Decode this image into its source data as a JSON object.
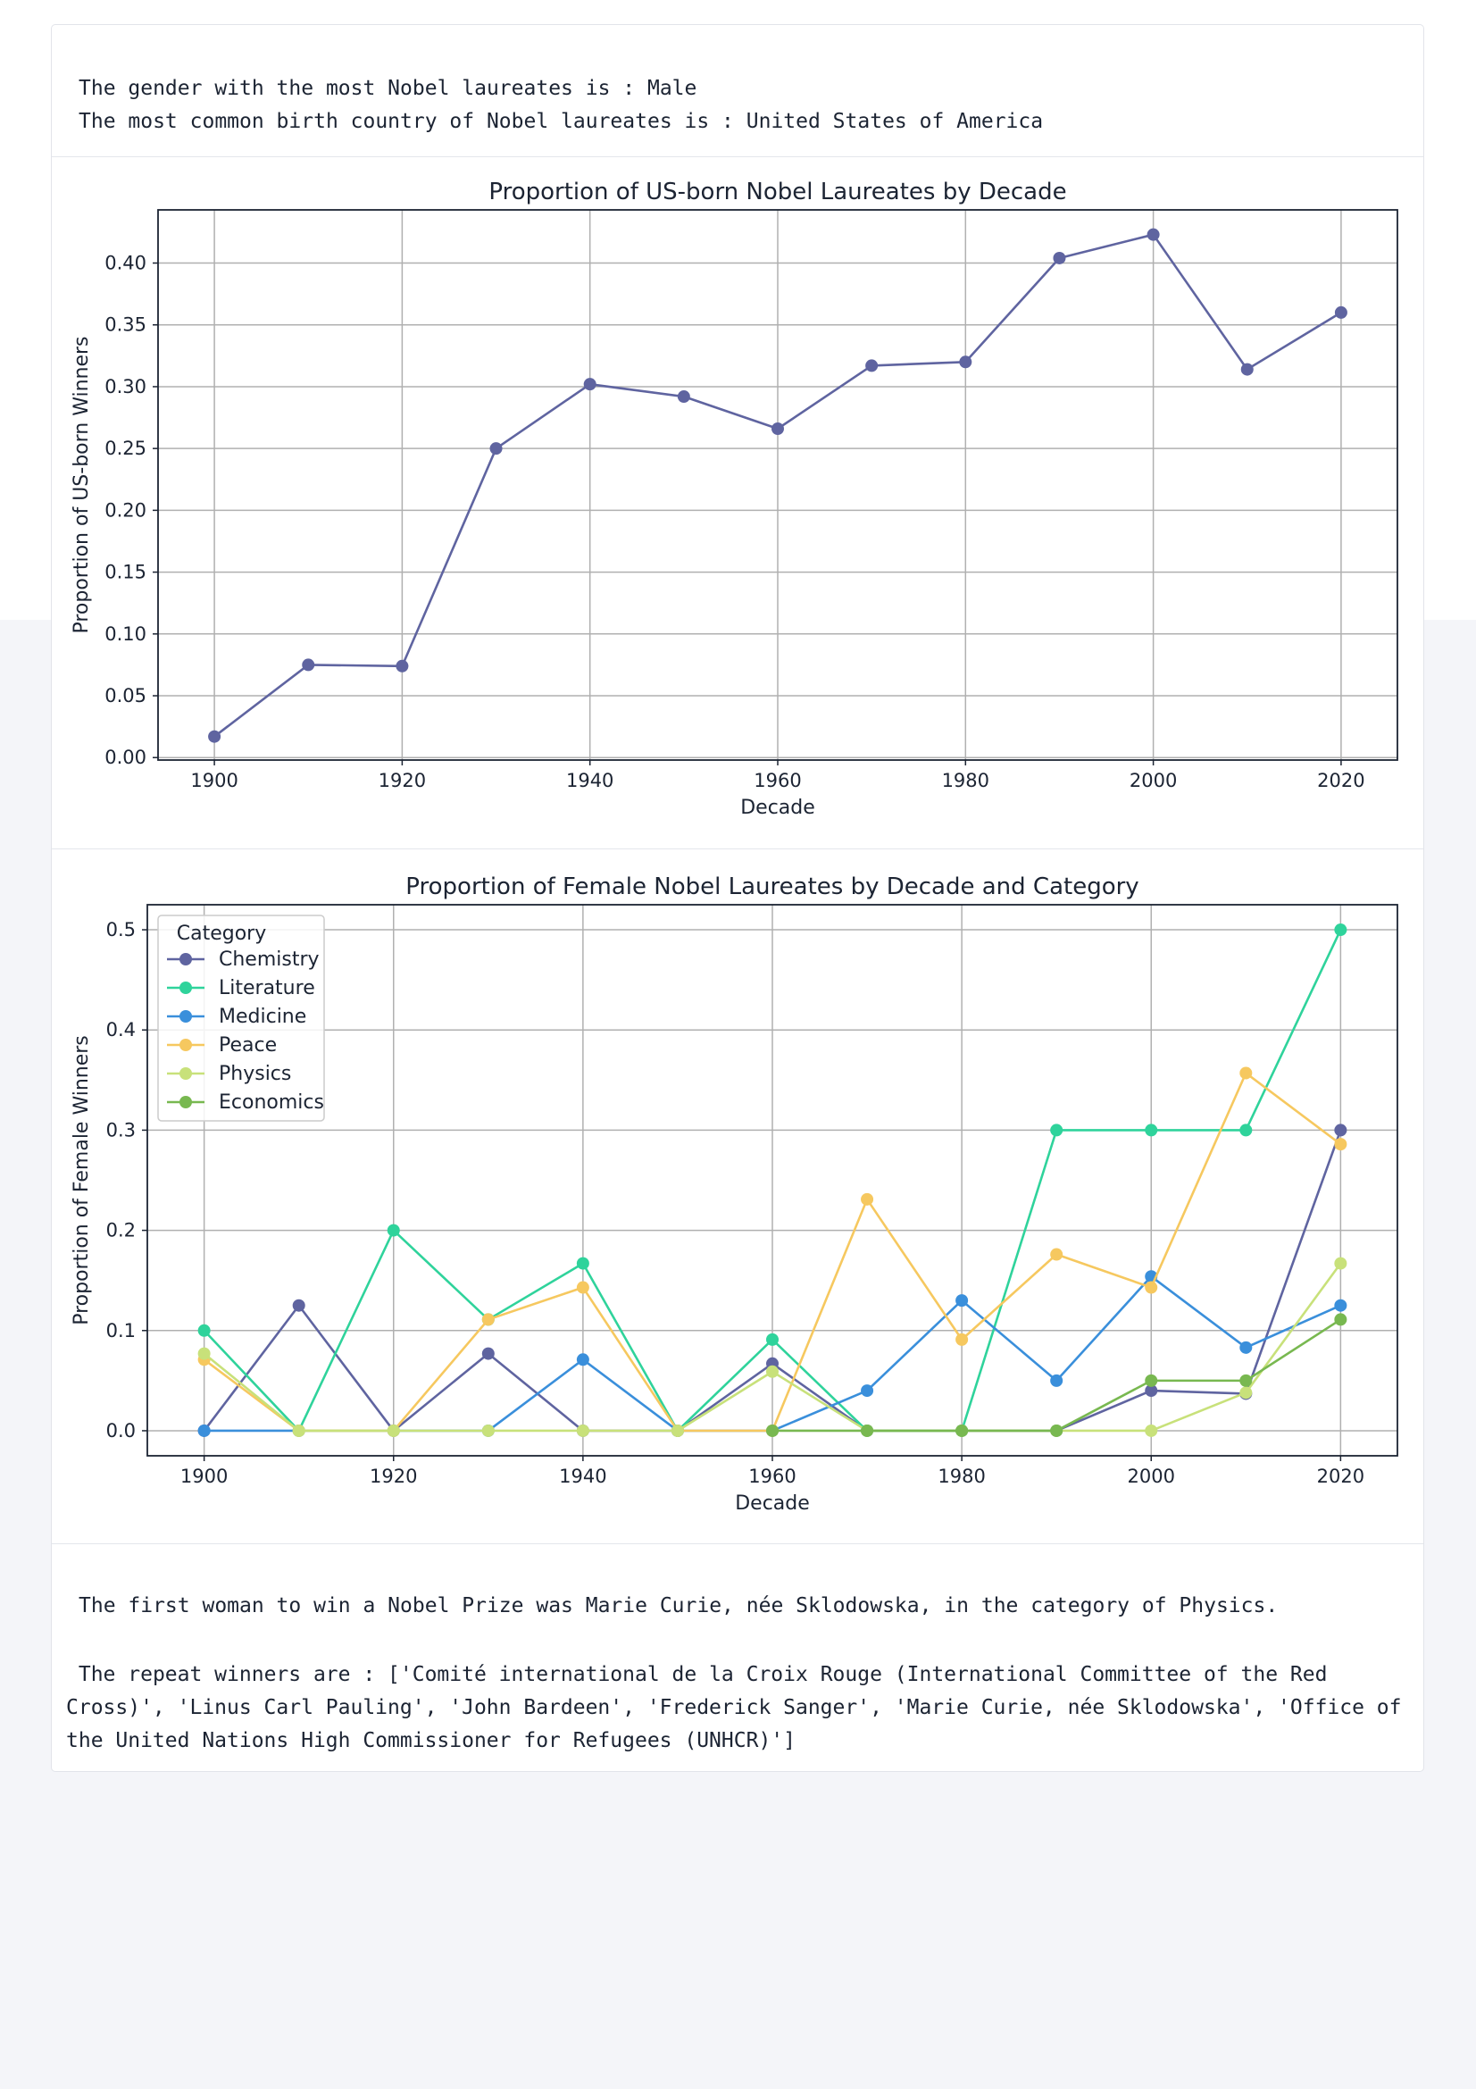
{
  "output_top": {
    "line1": "The gender with the most Nobel laureates is : Male",
    "line2": "The most common birth country of Nobel laureates is : United States of America"
  },
  "output_bottom": {
    "first_woman": "The first woman to win a Nobel Prize was Marie Curie, née Sklodowska, in the category of Physics.",
    "repeat_winners": " The repeat winners are : ['Comité international de la Croix Rouge (International Committee of the Red Cross)', 'Linus Carl Pauling', 'John Bardeen', 'Frederick Sanger', 'Marie Curie, née Sklodowska', 'Office of the United Nations High Commissioner for Refugees (UNHCR)']"
  },
  "colors": {
    "chemistry": "#5f64a0",
    "literature": "#2fd39b",
    "medicine": "#3a8fdb",
    "peace": "#f6c85f",
    "physics": "#c8e17a",
    "economics": "#78b850",
    "grid": "#b0b0b0",
    "axes": "#1c2433"
  },
  "chart_data": [
    {
      "type": "line",
      "title": "Proportion of US-born Nobel Laureates by Decade",
      "xlabel": "Decade",
      "ylabel": "Proportion of US-born Winners",
      "x": [
        1900,
        1910,
        1920,
        1930,
        1940,
        1950,
        1960,
        1970,
        1980,
        1990,
        2000,
        2010,
        2020
      ],
      "series": [
        {
          "values": [
            0.017,
            0.075,
            0.074,
            0.25,
            0.302,
            0.292,
            0.266,
            0.317,
            0.32,
            0.404,
            0.423,
            0.314,
            0.36
          ],
          "color": "#5f64a0"
        }
      ],
      "xticks": [
        "1900",
        "1920",
        "1940",
        "1960",
        "1980",
        "2000",
        "2020"
      ],
      "yticks": [
        "0.00",
        "0.05",
        "0.10",
        "0.15",
        "0.20",
        "0.25",
        "0.30",
        "0.35",
        "0.40"
      ],
      "xlim": [
        1894,
        2026
      ],
      "ylim": [
        -0.002,
        0.443
      ],
      "grid": true
    },
    {
      "type": "line",
      "title": "Proportion of Female Nobel Laureates by Decade and Category",
      "xlabel": "Decade",
      "ylabel": "Proportion of Female Winners",
      "legend_title": "Category",
      "legend_position": "top-left",
      "x": [
        1900,
        1910,
        1920,
        1930,
        1940,
        1950,
        1960,
        1970,
        1980,
        1990,
        2000,
        2010,
        2020
      ],
      "series": [
        {
          "name": "Chemistry",
          "color": "#5f64a0",
          "values": [
            0,
            0.125,
            0,
            0.077,
            0,
            0,
            0.067,
            0,
            0,
            0,
            0.04,
            0.037,
            0.3
          ]
        },
        {
          "name": "Literature",
          "color": "#2fd39b",
          "values": [
            0.1,
            0,
            0.2,
            0.111,
            0.167,
            0,
            0.091,
            0,
            0,
            0.3,
            0.3,
            0.3,
            0.5
          ]
        },
        {
          "name": "Medicine",
          "color": "#3a8fdb",
          "values": [
            0,
            0,
            0,
            0,
            0.071,
            0,
            0,
            0.04,
            0.13,
            0.05,
            0.154,
            0.083,
            0.125
          ]
        },
        {
          "name": "Peace",
          "color": "#f6c85f",
          "values": [
            0.071,
            0,
            0,
            0.111,
            0.143,
            0,
            0,
            0.231,
            0.091,
            0.176,
            0.143,
            0.357,
            0.286
          ]
        },
        {
          "name": "Physics",
          "color": "#c8e17a",
          "values": [
            0.077,
            0,
            0,
            0,
            0,
            0,
            0.059,
            0,
            0,
            0,
            0,
            0.038,
            0.167
          ]
        },
        {
          "name": "Economics",
          "color": "#78b850",
          "values": [
            null,
            null,
            null,
            null,
            null,
            null,
            0,
            0,
            0,
            0,
            0.05,
            0.05,
            0.111
          ]
        }
      ],
      "xticks": [
        "1900",
        "1920",
        "1940",
        "1960",
        "1980",
        "2000",
        "2020"
      ],
      "yticks": [
        "0.0",
        "0.1",
        "0.2",
        "0.3",
        "0.4",
        "0.5"
      ],
      "xlim": [
        1894,
        2026
      ],
      "ylim": [
        -0.025,
        0.525
      ],
      "grid": true
    }
  ]
}
